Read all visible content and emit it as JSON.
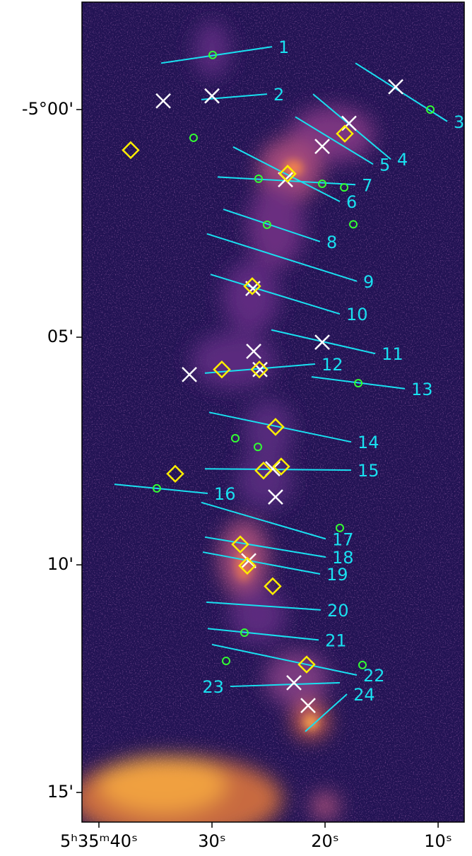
{
  "chart_data": {
    "type": "scatter",
    "xlim": [
      41.5,
      7.69
    ],
    "ylim": [
      15.65,
      -2.36
    ],
    "xticks": [
      {
        "value": 40,
        "label": "5ʰ35ᵐ40ˢ"
      },
      {
        "value": 30,
        "label": "30ˢ"
      },
      {
        "value": 20,
        "label": "20ˢ"
      },
      {
        "value": 10,
        "label": "10ˢ"
      }
    ],
    "yticks": [
      {
        "value": 0,
        "label": "-5°00'"
      },
      {
        "value": 5,
        "label": "05'"
      },
      {
        "value": 10,
        "label": "10'"
      },
      {
        "value": 15,
        "label": "15'"
      }
    ],
    "series": [
      {
        "marker": "x",
        "color": "#ffffff",
        "x": [
          34.31,
          30.0,
          13.75,
          17.88,
          20.25,
          23.5,
          26.38,
          20.25,
          26.31,
          25.75,
          32.0,
          24.63,
          24.38,
          26.75,
          22.75,
          21.5
        ],
        "y": [
          -0.19,
          -0.3,
          -0.5,
          0.3,
          0.81,
          1.54,
          3.93,
          5.11,
          5.31,
          5.71,
          5.82,
          7.89,
          8.51,
          9.91,
          12.59,
          13.09
        ]
      },
      {
        "marker": "diamond",
        "color": "#ffee00",
        "x": [
          37.19,
          18.25,
          23.31,
          26.44,
          29.13,
          25.81,
          24.38,
          33.25,
          25.44,
          23.88,
          27.5,
          26.88,
          24.63,
          21.63
        ],
        "y": [
          0.89,
          0.53,
          1.41,
          3.88,
          5.71,
          5.71,
          6.97,
          8.0,
          7.93,
          7.84,
          9.55,
          10.02,
          10.47,
          12.19
        ]
      },
      {
        "marker": "circle",
        "color": "#33ff33",
        "x": [
          29.94,
          31.63,
          10.69,
          25.88,
          20.25,
          18.31,
          25.13,
          17.5,
          17.06,
          27.94,
          25.94,
          34.88,
          18.69,
          27.13,
          28.75,
          16.69
        ],
        "y": [
          -1.2,
          0.62,
          0.0,
          1.52,
          1.63,
          1.71,
          2.53,
          2.52,
          6.01,
          7.22,
          7.41,
          8.32,
          9.19,
          11.49,
          12.11,
          12.2
        ]
      }
    ],
    "cuts_color": "#19e0f0",
    "cuts": [
      {
        "label": "1",
        "x": [
          34.5,
          24.69
        ],
        "y": [
          -1.02,
          -1.38
        ]
      },
      {
        "label": "2",
        "x": [
          30.94,
          25.13
        ],
        "y": [
          -0.22,
          -0.34
        ]
      },
      {
        "label": "3",
        "x": [
          17.31,
          9.19
        ],
        "y": [
          -1.02,
          0.26
        ]
      },
      {
        "label": "4",
        "x": [
          21.06,
          14.19
        ],
        "y": [
          -0.34,
          1.09
        ]
      },
      {
        "label": "5",
        "x": [
          22.63,
          15.75
        ],
        "y": [
          0.16,
          1.2
        ]
      },
      {
        "label": "6",
        "x": [
          28.13,
          18.69
        ],
        "y": [
          0.82,
          2.02
        ]
      },
      {
        "label": "7",
        "x": [
          29.5,
          17.31
        ],
        "y": [
          1.48,
          1.65
        ]
      },
      {
        "label": "8",
        "x": [
          29.0,
          20.44
        ],
        "y": [
          2.19,
          2.9
        ]
      },
      {
        "label": "9",
        "x": [
          30.44,
          17.19
        ],
        "y": [
          2.73,
          3.77
        ]
      },
      {
        "label": "10",
        "x": [
          30.13,
          18.69
        ],
        "y": [
          3.62,
          4.49
        ]
      },
      {
        "label": "11",
        "x": [
          24.75,
          15.56
        ],
        "y": [
          4.84,
          5.36
        ]
      },
      {
        "label": "12",
        "x": [
          30.63,
          20.88
        ],
        "y": [
          5.79,
          5.59
        ]
      },
      {
        "label": "13",
        "x": [
          21.19,
          12.94
        ],
        "y": [
          5.87,
          6.13
        ]
      },
      {
        "label": "14",
        "x": [
          30.25,
          17.69
        ],
        "y": [
          6.65,
          7.3
        ]
      },
      {
        "label": "15",
        "x": [
          30.63,
          17.69
        ],
        "y": [
          7.89,
          7.92
        ]
      },
      {
        "label": "16",
        "x": [
          38.63,
          30.38
        ],
        "y": [
          8.23,
          8.43
        ]
      },
      {
        "label": "17",
        "x": [
          30.94,
          19.94
        ],
        "y": [
          8.63,
          9.43
        ]
      },
      {
        "label": "18",
        "x": [
          30.63,
          19.94
        ],
        "y": [
          9.39,
          9.83
        ]
      },
      {
        "label": "19",
        "x": [
          30.81,
          20.44
        ],
        "y": [
          9.72,
          10.2
        ]
      },
      {
        "label": "20",
        "x": [
          30.5,
          20.38
        ],
        "y": [
          10.82,
          10.99
        ]
      },
      {
        "label": "21",
        "x": [
          30.38,
          20.56
        ],
        "y": [
          11.4,
          11.65
        ]
      },
      {
        "label": "22",
        "x": [
          30.0,
          17.19
        ],
        "y": [
          11.75,
          12.42
        ]
      },
      {
        "label": "23",
        "x": [
          18.69,
          28.38
        ],
        "y": [
          12.59,
          12.67
        ]
      },
      {
        "label": "24",
        "x": [
          21.75,
          18.06
        ],
        "y": [
          13.66,
          12.84
        ]
      }
    ]
  }
}
